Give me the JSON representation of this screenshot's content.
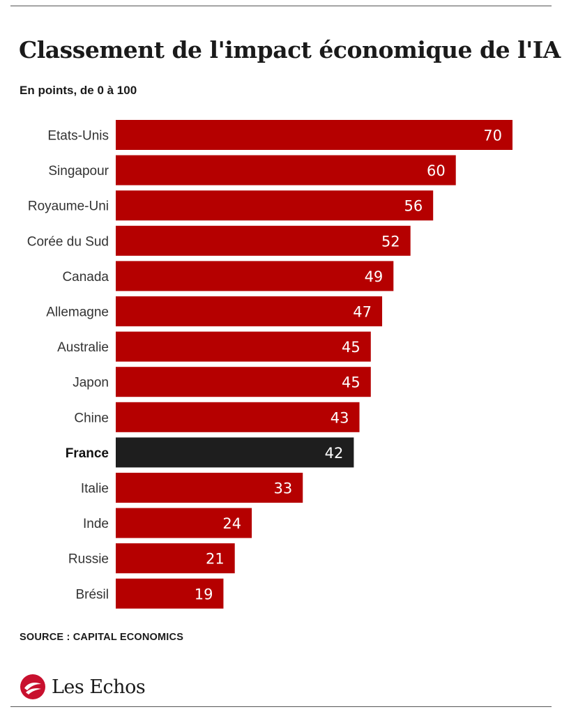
{
  "title": "Classement de l'impact économique de l'IA",
  "subtitle": "En points, de 0 à 100",
  "source": "SOURCE : CAPITAL ECONOMICS",
  "brand": {
    "name": "Les Echos",
    "icon": "les-echos-logo-icon"
  },
  "colors": {
    "bar": "#b50000",
    "highlight": "#1e1e1e",
    "value_text": "#ffffff"
  },
  "chart_data": {
    "type": "bar",
    "orientation": "horizontal",
    "title": "Classement de l'impact économique de l'IA",
    "subtitle": "En points, de 0 à 100",
    "categories": [
      "Etats-Unis",
      "Singapour",
      "Royaume-Uni",
      "Corée du Sud",
      "Canada",
      "Allemagne",
      "Australie",
      "Japon",
      "Chine",
      "France",
      "Italie",
      "Inde",
      "Russie",
      "Brésil"
    ],
    "values": [
      70,
      60,
      56,
      52,
      49,
      47,
      45,
      45,
      43,
      42,
      33,
      24,
      21,
      19
    ],
    "highlight": "France",
    "xlim": [
      0,
      70
    ],
    "grid": false,
    "legend": "none",
    "data_labels": true
  }
}
